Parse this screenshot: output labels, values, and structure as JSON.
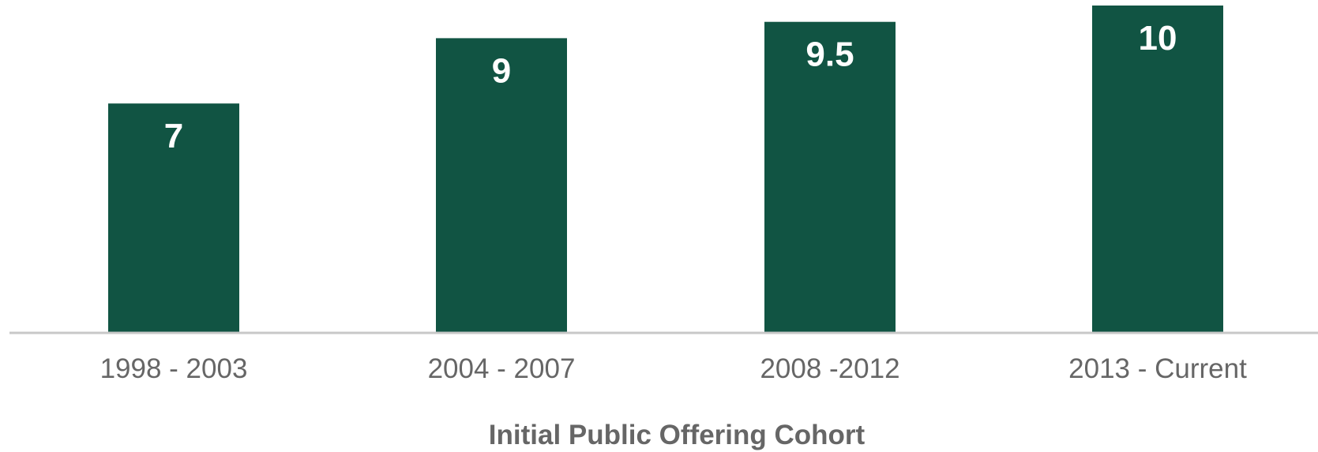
{
  "chart_data": {
    "type": "bar",
    "title": "",
    "categories": [
      "1998 - 2003",
      "2004 - 2007",
      "2008 -2012",
      "2013 - Current"
    ],
    "values": [
      7,
      9,
      9.5,
      10
    ],
    "data_labels": [
      "7",
      "9",
      "9.5",
      "10"
    ],
    "xlabel": "Initial Public Offering Cohort",
    "ylabel": "",
    "ylim": [
      0,
      10
    ],
    "grid": false,
    "legend": "none",
    "colors": {
      "bar": "#115443",
      "axis_line": "#c8c8c8",
      "tick_text": "#666666",
      "data_label_text": "#ffffff"
    }
  }
}
